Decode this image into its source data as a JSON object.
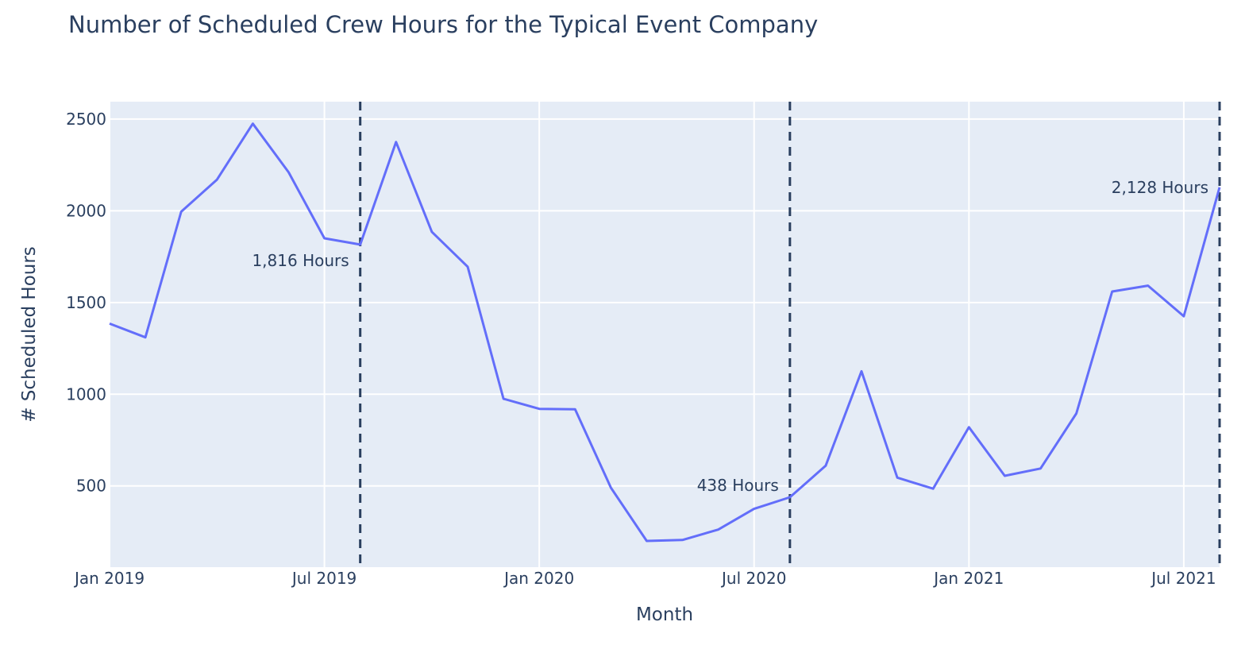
{
  "chart_data": {
    "type": "line",
    "title": "Number of Scheduled Crew Hours for the Typical Event Company",
    "xlabel": "Month",
    "ylabel": "# Scheduled Hours",
    "x": [
      "2019-01",
      "2019-02",
      "2019-03",
      "2019-04",
      "2019-05",
      "2019-06",
      "2019-07",
      "2019-08",
      "2019-09",
      "2019-10",
      "2019-11",
      "2019-12",
      "2020-01",
      "2020-02",
      "2020-03",
      "2020-04",
      "2020-05",
      "2020-06",
      "2020-07",
      "2020-08",
      "2020-09",
      "2020-10",
      "2020-11",
      "2020-12",
      "2021-01",
      "2021-02",
      "2021-03",
      "2021-04",
      "2021-05",
      "2021-06",
      "2021-07",
      "2021-08"
    ],
    "series": [
      {
        "color": "#636efa",
        "values": [
          1385,
          1310,
          1995,
          2170,
          2475,
          2210,
          1850,
          1816,
          2375,
          1885,
          1695,
          975,
          920,
          918,
          490,
          200,
          205,
          262,
          375,
          438,
          610,
          1125,
          545,
          485,
          820,
          555,
          595,
          895,
          1560,
          1592,
          1425,
          2128
        ]
      }
    ],
    "y_ticks": [
      500,
      1000,
      1500,
      2000,
      2500
    ],
    "y_tick_labels": [
      "500",
      "1000",
      "1500",
      "2000",
      "2500"
    ],
    "x_ticks": [
      "2019-01",
      "2019-07",
      "2020-01",
      "2020-07",
      "2021-01",
      "2021-07"
    ],
    "x_tick_labels": [
      "Jan 2019",
      "Jul 2019",
      "Jan 2020",
      "Jul 2020",
      "Jan 2021",
      "Jul 2021"
    ],
    "xlim": [
      "2019-01",
      "2021-08"
    ],
    "ylim": [
      57,
      2595
    ],
    "grid": true,
    "plot_background": "#e5ecf6",
    "vlines": [
      {
        "x": "2019-08",
        "color": "#2a3f5f",
        "style": "dashed"
      },
      {
        "x": "2020-08",
        "color": "#2a3f5f",
        "style": "dashed"
      },
      {
        "x": "2021-08",
        "color": "#2a3f5f",
        "style": "dashed"
      }
    ],
    "annotations": [
      {
        "x": "2019-08",
        "y": 1816,
        "text": "1,816 Hours"
      },
      {
        "x": "2020-08",
        "y": 438,
        "text": "438 Hours"
      },
      {
        "x": "2021-08",
        "y": 2128,
        "text": "2,128 Hours"
      }
    ]
  }
}
